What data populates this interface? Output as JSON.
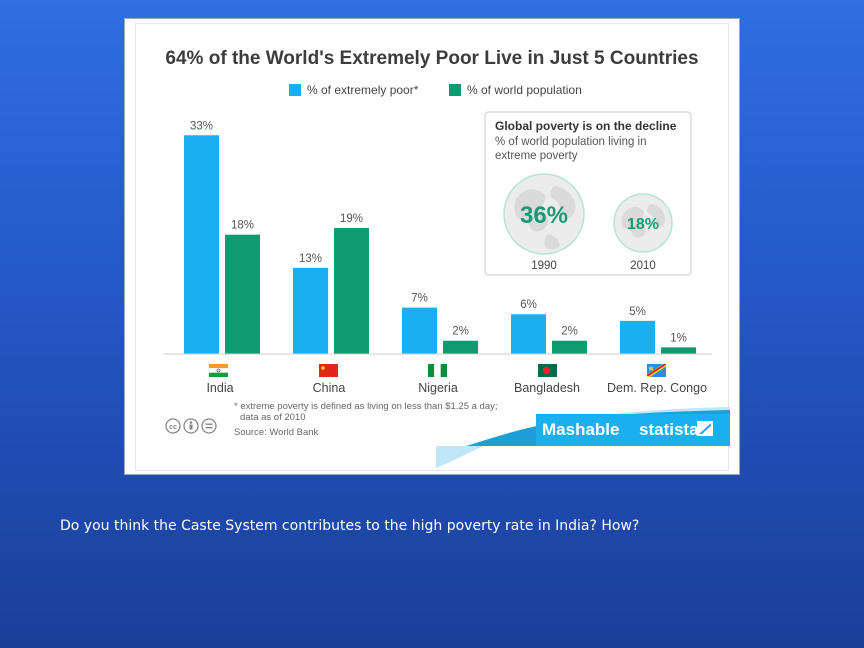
{
  "chart_data": {
    "type": "bar",
    "title": "64% of the World's Extremely Poor Live in Just 5 Countries",
    "categories": [
      "India",
      "China",
      "Nigeria",
      "Bangladesh",
      "Dem. Rep. Congo"
    ],
    "series": [
      {
        "name": "% of extremely poor*",
        "values": [
          33,
          13,
          7,
          6,
          5
        ],
        "labels": [
          "33%",
          "13%",
          "7%",
          "6%",
          "5%"
        ],
        "color": "#1ab0f0"
      },
      {
        "name": "% of world population",
        "values": [
          18,
          19,
          2,
          2,
          1
        ],
        "labels": [
          "18%",
          "19%",
          "2%",
          "2%",
          "1%"
        ],
        "color": "#0f9a70"
      }
    ],
    "ylim": [
      0,
      35
    ],
    "grid": false,
    "legend": "top-center",
    "footnote_line1": "* extreme poverty is defined as living on less than $1.25 a day;",
    "footnote_line2": "data as of 2010",
    "source": "Source: World Bank"
  },
  "inset": {
    "title": "Global poverty is on the decline",
    "subtitle_line1": "% of world population living in",
    "subtitle_line2": "extreme poverty",
    "items": [
      {
        "value": 36,
        "label": "36%",
        "year": "1990"
      },
      {
        "value": 18,
        "label": "18%",
        "year": "2010"
      }
    ]
  },
  "branding": {
    "mashable": "Mashable",
    "statista": "statista"
  },
  "icons": [
    "creative-commons-icon",
    "attribution-icon",
    "no-derivatives-icon",
    "flag-india-icon",
    "flag-china-icon",
    "flag-nigeria-icon",
    "flag-bangladesh-icon",
    "flag-dr-congo-icon",
    "globe-icon"
  ],
  "question": "Do you think the Caste System contributes to the high poverty rate in India? How?"
}
